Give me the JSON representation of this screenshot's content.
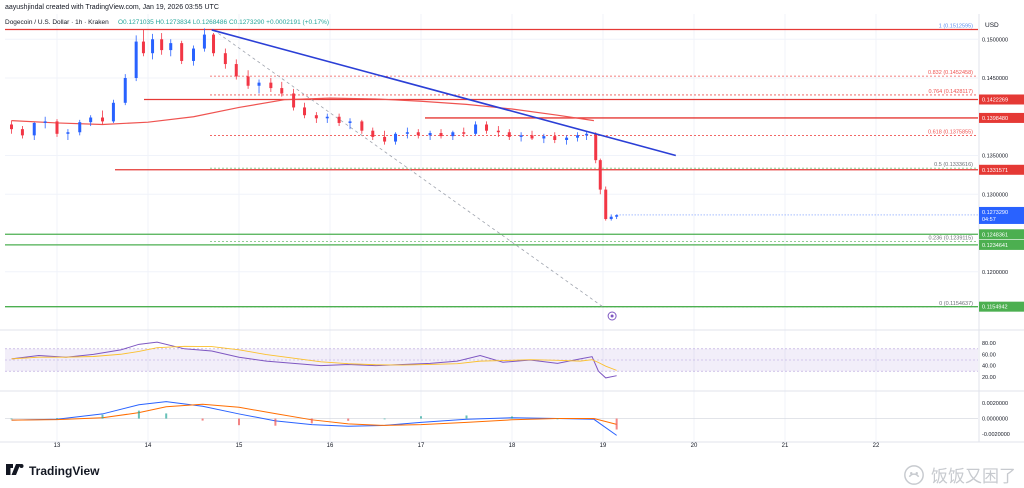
{
  "header": {
    "credit": "aayushjindal created with TradingView.com, Jan 19, 2026 03:55 UTC",
    "symbol": "Dogecoin / U.S. Dollar · 1h · Kraken",
    "ohlc": "O0.1271035 H0.1273834 L0.1268486 C0.1273290 +0.0002191 (+0.17%)"
  },
  "colors": {
    "up": "#2962ff",
    "down": "#f23645",
    "support": "#4caf50",
    "resistance": "#e53935",
    "trendline": "#2b3fd6",
    "fib_level": "#ef5350",
    "fib_green": "#81c784",
    "rsi": "#7e57c2",
    "rsi_ma": "#fbc02d",
    "macd": "#2962ff",
    "signal": "#ff6d00",
    "ma": "#ef5350"
  },
  "chart_data": {
    "type": "candlestick",
    "currency": "USD",
    "x_ticks": [
      "13",
      "14",
      "15",
      "16",
      "17",
      "18",
      "19",
      "20",
      "21",
      "22"
    ],
    "price_ticks": [
      "0.1500000",
      "0.1450000",
      "0.1350000",
      "0.1300000",
      "0.1200000"
    ],
    "ylim": [
      0.113,
      0.153
    ],
    "fib_levels": [
      {
        "label": "1 (0.1512595)",
        "value": 0.1512595
      },
      {
        "label": "0.832 (0.1452458)",
        "value": 0.1452458
      },
      {
        "label": "0.764 (0.1428117)",
        "value": 0.1428117
      },
      {
        "label": "0.618 (0.1375855)",
        "value": 0.1375855
      },
      {
        "label": "0.5 (0.1333616)",
        "value": 0.1333616
      },
      {
        "label": "0.236 (0.1239115)",
        "value": 0.1239115
      },
      {
        "label": "0 (0.1154637)",
        "value": 0.1154637
      }
    ],
    "horizontal_lines": [
      {
        "label": "0.1422269",
        "value": 0.1422269,
        "kind": "resistance"
      },
      {
        "label": "0.1398480",
        "value": 0.139848,
        "kind": "resistance"
      },
      {
        "label": "0.1331571",
        "value": 0.1331571,
        "kind": "resistance"
      },
      {
        "label": "0.1248361",
        "value": 0.1248361,
        "kind": "support"
      },
      {
        "label": "0.1234641",
        "value": 0.1234641,
        "kind": "support"
      },
      {
        "label": "0.1154942",
        "value": 0.1154942,
        "kind": "support"
      }
    ],
    "current_price": {
      "label": "0.1273290",
      "countdown": "04:57",
      "value": 0.127329
    },
    "trendline": {
      "from": [
        "14.7",
        0.1512
      ],
      "to": [
        "19.8",
        0.135
      ]
    },
    "series": [
      {
        "name": "",
        "kind": "candles",
        "points": [
          [
            "12.50",
            0.139,
            0.1395,
            0.1378,
            0.1384
          ],
          [
            "12.62",
            0.1384,
            0.1388,
            0.1372,
            0.1376
          ],
          [
            "12.75",
            0.1376,
            0.1393,
            0.137,
            0.1392
          ],
          [
            "12.87",
            0.1392,
            0.14,
            0.1385,
            0.1394
          ],
          [
            "13.00",
            0.1394,
            0.1397,
            0.1374,
            0.1378
          ],
          [
            "13.12",
            0.1378,
            0.1384,
            0.137,
            0.138
          ],
          [
            "13.25",
            0.138,
            0.1396,
            0.1376,
            0.1393
          ],
          [
            "13.37",
            0.1393,
            0.1402,
            0.1388,
            0.1399
          ],
          [
            "13.50",
            0.1399,
            0.1408,
            0.139,
            0.1394
          ],
          [
            "13.62",
            0.1394,
            0.1422,
            0.1392,
            0.1418
          ],
          [
            "13.75",
            0.1418,
            0.1455,
            0.1415,
            0.145
          ],
          [
            "13.87",
            0.145,
            0.1505,
            0.1446,
            0.1497
          ],
          [
            "13.95",
            0.1497,
            0.1512,
            0.1478,
            0.1482
          ],
          [
            "14.05",
            0.1482,
            0.1507,
            0.1474,
            0.15
          ],
          [
            "14.15",
            0.15,
            0.1508,
            0.148,
            0.1486
          ],
          [
            "14.25",
            0.1486,
            0.15,
            0.1478,
            0.1495
          ],
          [
            "14.37",
            0.1495,
            0.1498,
            0.1468,
            0.1472
          ],
          [
            "14.50",
            0.1472,
            0.1492,
            0.1466,
            0.1488
          ],
          [
            "14.62",
            0.1488,
            0.1514,
            0.1484,
            0.1506
          ],
          [
            "14.72",
            0.1506,
            0.1508,
            0.1478,
            0.1482
          ],
          [
            "14.85",
            0.1482,
            0.1488,
            0.1462,
            0.1468
          ],
          [
            "14.97",
            0.1468,
            0.1474,
            0.1448,
            0.1452
          ],
          [
            "15.10",
            0.1452,
            0.146,
            0.1436,
            0.144
          ],
          [
            "15.22",
            0.144,
            0.1448,
            0.143,
            0.1444
          ],
          [
            "15.35",
            0.1444,
            0.145,
            0.1432,
            0.1437
          ],
          [
            "15.47",
            0.1437,
            0.1445,
            0.1426,
            0.143
          ],
          [
            "15.60",
            0.143,
            0.1436,
            0.1408,
            0.1412
          ],
          [
            "15.72",
            0.1412,
            0.1418,
            0.1398,
            0.1402
          ],
          [
            "15.85",
            0.1402,
            0.1406,
            0.1392,
            0.1398
          ],
          [
            "15.97",
            0.1398,
            0.1404,
            0.1392,
            0.14
          ],
          [
            "16.10",
            0.14,
            0.1404,
            0.1388,
            0.1392
          ],
          [
            "16.22",
            0.1392,
            0.1398,
            0.1384,
            0.1394
          ],
          [
            "16.35",
            0.1394,
            0.1396,
            0.1378,
            0.1382
          ],
          [
            "16.47",
            0.1382,
            0.1386,
            0.137,
            0.1374
          ],
          [
            "16.60",
            0.1374,
            0.1382,
            0.1364,
            0.1368
          ],
          [
            "16.72",
            0.1368,
            0.138,
            0.1364,
            0.1378
          ],
          [
            "16.85",
            0.1378,
            0.1386,
            0.1372,
            0.138
          ],
          [
            "16.97",
            0.138,
            0.1384,
            0.1372,
            0.1376
          ],
          [
            "17.10",
            0.1376,
            0.1382,
            0.137,
            0.1379
          ],
          [
            "17.22",
            0.1379,
            0.1384,
            0.1372,
            0.1375
          ],
          [
            "17.35",
            0.1375,
            0.1382,
            0.137,
            0.138
          ],
          [
            "17.47",
            0.138,
            0.1386,
            0.1374,
            0.1378
          ],
          [
            "17.60",
            0.1378,
            0.1394,
            0.1376,
            0.139
          ],
          [
            "17.72",
            0.139,
            0.1394,
            0.1378,
            0.1382
          ],
          [
            "17.85",
            0.1382,
            0.1388,
            0.1374,
            0.138
          ],
          [
            "17.97",
            0.138,
            0.1384,
            0.137,
            0.1374
          ],
          [
            "18.10",
            0.1374,
            0.138,
            0.1368,
            0.1376
          ],
          [
            "18.22",
            0.1376,
            0.1382,
            0.137,
            0.1372
          ],
          [
            "18.35",
            0.1372,
            0.1378,
            0.1366,
            0.1375
          ],
          [
            "18.47",
            0.1375,
            0.138,
            0.1366,
            0.137
          ],
          [
            "18.60",
            0.137,
            0.1376,
            0.1364,
            0.1373
          ],
          [
            "18.72",
            0.1373,
            0.138,
            0.1368,
            0.1376
          ],
          [
            "18.82",
            0.1376,
            0.1381,
            0.137,
            0.1378
          ],
          [
            "18.92",
            0.1378,
            0.138,
            0.134,
            0.1344
          ],
          [
            "18.97",
            0.1344,
            0.1346,
            0.13,
            0.1306
          ],
          [
            "19.03",
            0.1306,
            0.131,
            0.1266,
            0.1268
          ],
          [
            "19.09",
            0.1268,
            0.1274,
            0.1266,
            0.1271
          ],
          [
            "19.15",
            0.1271,
            0.1274,
            0.1268,
            0.1273
          ]
        ]
      },
      {
        "name": "",
        "kind": "moving_average",
        "x": [
          "12.50",
          "13.00",
          "13.50",
          "14.00",
          "14.50",
          "15.00",
          "15.50",
          "16.00",
          "16.50",
          "17.00",
          "17.50",
          "18.00",
          "18.50",
          "18.90"
        ],
        "values": [
          0.1395,
          0.1392,
          0.139,
          0.1393,
          0.14,
          0.1412,
          0.1422,
          0.1424,
          0.1423,
          0.142,
          0.1416,
          0.141,
          0.1402,
          0.1395
        ]
      },
      {
        "name": "RSI",
        "kind": "oscillator",
        "ylim": [
          0,
          100
        ],
        "x": [
          "12.50",
          "12.80",
          "13.10",
          "13.40",
          "13.70",
          "13.90",
          "14.10",
          "14.40",
          "14.70",
          "15.00",
          "15.30",
          "15.60",
          "15.90",
          "16.20",
          "16.50",
          "16.80",
          "17.10",
          "17.40",
          "17.65",
          "17.90",
          "18.20",
          "18.50",
          "18.75",
          "18.88",
          "18.95",
          "19.03",
          "19.15"
        ],
        "values": [
          52,
          58,
          55,
          60,
          68,
          78,
          82,
          70,
          66,
          55,
          48,
          44,
          40,
          42,
          40,
          42,
          44,
          48,
          58,
          46,
          50,
          44,
          52,
          56,
          30,
          18,
          22
        ]
      },
      {
        "name": "MACD",
        "kind": "oscillator",
        "ylim": [
          -0.0028,
          0.0032
        ],
        "x": [
          "12.50",
          "13.00",
          "13.50",
          "13.90",
          "14.20",
          "14.60",
          "15.00",
          "15.40",
          "15.80",
          "16.20",
          "16.60",
          "17.00",
          "17.50",
          "18.00",
          "18.50",
          "18.90",
          "19.15"
        ],
        "values": [
          -0.0002,
          -0.0001,
          0.0006,
          0.0018,
          0.0022,
          0.0016,
          0.0006,
          -0.0003,
          -0.0008,
          -0.001,
          -0.0009,
          -0.0005,
          -0.0001,
          0.0001,
          0.0,
          -0.0001,
          -0.0022
        ]
      }
    ],
    "rsi_ticks": [
      "80.00",
      "60.00",
      "40.00",
      "20.00"
    ],
    "macd_ticks": [
      "0.0020000",
      "0.0000000",
      "-0.0020000"
    ]
  },
  "footer": {
    "brand": "TradingView",
    "watermark": "饭饭又困了"
  }
}
